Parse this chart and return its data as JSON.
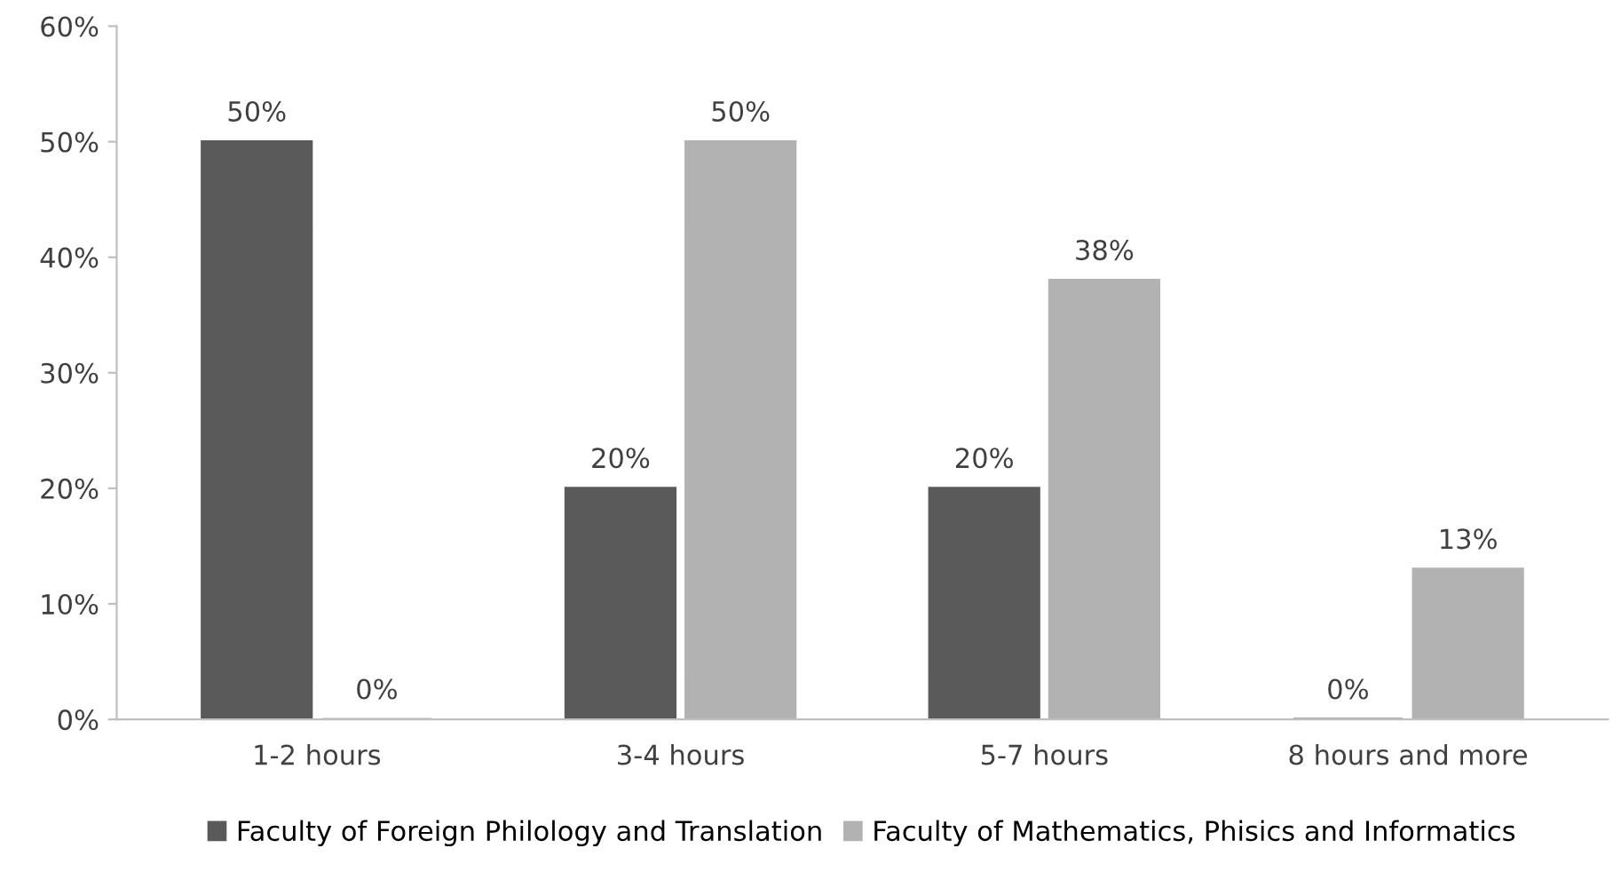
{
  "chart_data": {
    "type": "bar",
    "categories": [
      "1-2 hours",
      "3-4 hours",
      "5-7 hours",
      "8 hours and more"
    ],
    "series": [
      {
        "name": "Faculty of Foreign Philology and Translation",
        "color": "#5a5a5a",
        "values": [
          50,
          20,
          20,
          0
        ],
        "value_labels": [
          "50%",
          "20%",
          "20%",
          "0%"
        ]
      },
      {
        "name": "Faculty of Mathematics, Phisics and Informatics",
        "color": "#b2b2b2",
        "values": [
          0,
          50,
          38,
          13
        ],
        "value_labels": [
          "0%",
          "50%",
          "38%",
          "13%"
        ]
      }
    ],
    "ylim": [
      0,
      60
    ],
    "yticks": [
      {
        "value": 0,
        "label": "0%"
      },
      {
        "value": 10,
        "label": "10%"
      },
      {
        "value": 20,
        "label": "20%"
      },
      {
        "value": 30,
        "label": "30%"
      },
      {
        "value": 40,
        "label": "40%"
      },
      {
        "value": 50,
        "label": "50%"
      },
      {
        "value": 60,
        "label": "60%"
      }
    ],
    "grid": false,
    "legend": "bottom"
  }
}
